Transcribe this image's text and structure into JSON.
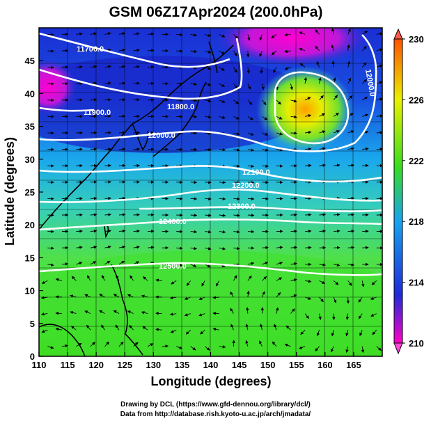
{
  "title": "GSM 06Z17Apr2024 (200.0hPa)",
  "xlabel": "Longitude (degrees)",
  "ylabel": "Latitude  (degrees)",
  "xticks": [
    110,
    115,
    120,
    125,
    130,
    135,
    140,
    145,
    150,
    155,
    160,
    165
  ],
  "yticks": [
    0,
    5,
    10,
    15,
    20,
    25,
    30,
    35,
    40,
    45
  ],
  "xlim": [
    110,
    170
  ],
  "ylim": [
    0,
    50
  ],
  "colorbar": {
    "ticks": [
      "230",
      "226",
      "222",
      "218",
      "214",
      "210"
    ],
    "range": [
      210,
      230
    ]
  },
  "colormap": [
    "#ff00c8",
    "#1e2bd8",
    "#16a3f0",
    "#38dd20",
    "#eaf000",
    "#ff5200"
  ],
  "contour_labels": [
    "11700.0",
    "11900.0",
    "11800.0",
    "12000.0",
    "12100.0",
    "12200.0",
    "12300.0",
    "12400.0",
    "12500.0",
    "12000.0"
  ],
  "credit_line1": "Drawing by DCL (https://www.gfd-dennou.org/library/dcl/)",
  "credit_line2": "Data from http://database.rish.kyoto-u.ac.jp/arch/jmadata/"
}
